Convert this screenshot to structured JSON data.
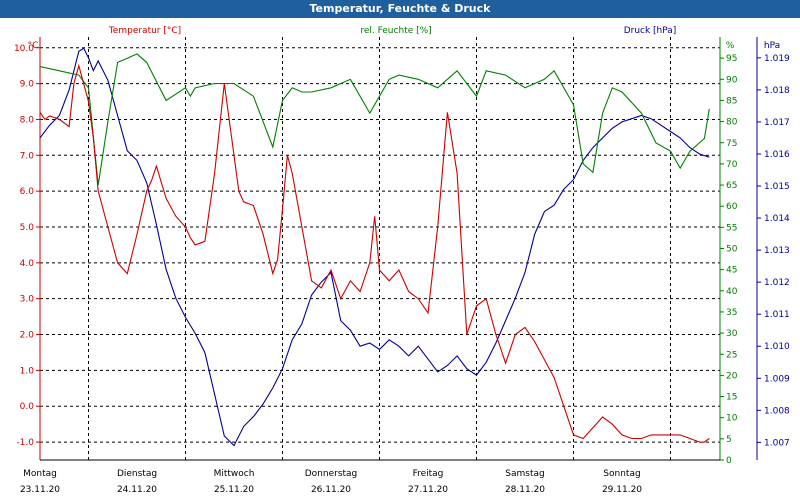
{
  "title": "Temperatur, Feuchte & Druck",
  "chart_data": {
    "type": "line",
    "title": "Temperatur, Feuchte & Druck",
    "x_days": [
      {
        "day": "Montag",
        "date": "23.11.20"
      },
      {
        "day": "Dienstag",
        "date": "24.11.20"
      },
      {
        "day": "Mittwoch",
        "date": "25.11.20"
      },
      {
        "day": "Donnerstag",
        "date": "26.11.20"
      },
      {
        "day": "Freitag",
        "date": "27.11.20"
      },
      {
        "day": "Samstag",
        "date": "28.11.20"
      },
      {
        "day": "Sonntag",
        "date": "29.11.20"
      }
    ],
    "grid": true,
    "axes": {
      "temperature": {
        "label": "Temperatur [°C]",
        "unit": "°C",
        "color": "#cc0000",
        "min": -1.5,
        "max": 10.3,
        "ticks": [
          "10.0",
          "9.0",
          "8.0",
          "7.0",
          "6.0",
          "5.0",
          "4.0",
          "3.0",
          "2.0",
          "1.0",
          "0.0",
          "-1.0"
        ]
      },
      "humidity": {
        "label": "rel. Feuchte [%]",
        "unit": "%",
        "color": "#008000",
        "min": 0,
        "max": 100,
        "ticks": [
          "95",
          "90",
          "85",
          "80",
          "75",
          "70",
          "65",
          "60",
          "55",
          "50",
          "45",
          "40",
          "35",
          "30",
          "25",
          "20",
          "15",
          "10",
          "5",
          "0"
        ]
      },
      "pressure": {
        "label": "Druck [hPa]",
        "unit": "hPa",
        "color": "#000099",
        "min": 1006.45,
        "max": 1019.65,
        "ticks": [
          "1.019",
          "1.018",
          "1.017",
          "1.016",
          "1.015",
          "1.014",
          "1.013",
          "1.012",
          "1.011",
          "1.010",
          "1.009",
          "1.008",
          "1.007"
        ]
      }
    },
    "series": [
      {
        "name": "Temperatur [°C]",
        "axis": "temperature",
        "color": "#cc0000",
        "x": [
          0,
          0.05,
          0.1,
          0.2,
          0.3,
          0.35,
          0.4,
          0.5,
          0.55,
          0.6,
          0.7,
          0.8,
          0.9,
          1.0,
          1.1,
          1.15,
          1.2,
          1.3,
          1.4,
          1.5,
          1.55,
          1.6,
          1.7,
          1.8,
          1.9,
          2.0,
          2.05,
          2.1,
          2.2,
          2.3,
          2.4,
          2.45,
          2.5,
          2.55,
          2.6,
          2.7,
          2.8,
          2.9,
          3.0,
          3.1,
          3.2,
          3.3,
          3.4,
          3.45,
          3.5,
          3.6,
          3.7,
          3.8,
          3.9,
          4.0,
          4.1,
          4.2,
          4.3,
          4.4,
          4.5,
          4.6,
          4.7,
          4.8,
          4.9,
          5.0,
          5.1,
          5.2,
          5.3,
          5.4,
          5.5,
          5.6,
          5.7,
          5.8,
          5.9,
          6.0,
          6.1,
          6.2,
          6.3,
          6.4,
          6.5,
          6.6,
          6.7,
          6.8,
          6.85,
          6.9
        ],
        "values": [
          8.2,
          8.0,
          8.1,
          8.0,
          7.8,
          9.0,
          9.5,
          8.5,
          7.5,
          6.0,
          5.0,
          4.0,
          3.7,
          4.8,
          6.0,
          6.3,
          6.7,
          5.8,
          5.3,
          5.0,
          4.7,
          4.5,
          4.6,
          6.5,
          9.0,
          7.0,
          6.0,
          5.7,
          5.6,
          4.8,
          3.7,
          4.1,
          5.5,
          7.0,
          6.5,
          5.0,
          3.5,
          3.3,
          3.8,
          3.0,
          3.5,
          3.2,
          4.0,
          5.3,
          3.8,
          3.5,
          3.8,
          3.2,
          3.0,
          2.6,
          5.0,
          8.2,
          6.5,
          2.0,
          2.8,
          3.0,
          2.0,
          1.2,
          2.0,
          2.2,
          1.8,
          1.3,
          0.8,
          0.0,
          -0.8,
          -0.9,
          -0.6,
          -0.3,
          -0.5,
          -0.8,
          -0.9,
          -0.9,
          -0.8,
          -0.8,
          -0.8,
          -0.8,
          -0.9,
          -1.0,
          -1.0,
          -0.9
        ]
      },
      {
        "name": "rel. Feuchte [%]",
        "axis": "humidity",
        "color": "#008000",
        "x": [
          0,
          0.2,
          0.4,
          0.5,
          0.6,
          0.7,
          0.8,
          0.9,
          1.0,
          1.1,
          1.3,
          1.5,
          1.55,
          1.6,
          1.8,
          2.0,
          2.2,
          2.3,
          2.4,
          2.5,
          2.6,
          2.7,
          2.8,
          3.0,
          3.2,
          3.4,
          3.6,
          3.7,
          3.9,
          4.0,
          4.1,
          4.3,
          4.5,
          4.6,
          4.8,
          5.0,
          5.2,
          5.3,
          5.5,
          5.6,
          5.7,
          5.8,
          5.9,
          6.0,
          6.2,
          6.35,
          6.5,
          6.6,
          6.7,
          6.85,
          6.9
        ],
        "values": [
          93,
          92,
          91,
          88,
          65,
          80,
          94,
          95,
          96,
          94,
          85,
          88,
          86,
          88,
          89,
          89,
          86,
          80,
          74,
          85,
          88,
          87,
          87,
          88,
          90,
          82,
          90,
          91,
          90,
          89,
          88,
          92,
          86,
          92,
          91,
          88,
          90,
          92,
          84,
          70,
          68,
          82,
          88,
          87,
          82,
          75,
          73,
          69,
          73,
          76,
          83
        ]
      },
      {
        "name": "Druck [hPa]",
        "axis": "pressure",
        "color": "#000099",
        "x": [
          0,
          0.1,
          0.2,
          0.3,
          0.4,
          0.45,
          0.5,
          0.55,
          0.6,
          0.7,
          0.8,
          0.9,
          1.0,
          1.1,
          1.2,
          1.3,
          1.4,
          1.5,
          1.6,
          1.7,
          1.8,
          1.9,
          2.0,
          2.1,
          2.2,
          2.3,
          2.4,
          2.5,
          2.6,
          2.7,
          2.8,
          2.9,
          3.0,
          3.1,
          3.2,
          3.3,
          3.4,
          3.5,
          3.6,
          3.7,
          3.8,
          3.9,
          4.0,
          4.1,
          4.2,
          4.3,
          4.4,
          4.5,
          4.6,
          4.7,
          4.8,
          4.9,
          5.0,
          5.1,
          5.2,
          5.3,
          5.4,
          5.5,
          5.6,
          5.7,
          5.8,
          5.9,
          6.0,
          6.1,
          6.2,
          6.3,
          6.4,
          6.5,
          6.6,
          6.7,
          6.8,
          6.9
        ],
        "values": [
          1016.5,
          1016.9,
          1017.2,
          1018.0,
          1019.2,
          1019.3,
          1019.0,
          1018.6,
          1018.9,
          1018.3,
          1017.2,
          1016.1,
          1015.8,
          1015.1,
          1013.8,
          1012.4,
          1011.5,
          1010.9,
          1010.4,
          1009.8,
          1008.5,
          1007.2,
          1006.9,
          1007.5,
          1007.8,
          1008.2,
          1008.7,
          1009.3,
          1010.2,
          1010.7,
          1011.6,
          1012.0,
          1012.3,
          1010.8,
          1010.5,
          1010.0,
          1010.1,
          1009.9,
          1010.2,
          1010.0,
          1009.7,
          1010.0,
          1009.6,
          1009.2,
          1009.4,
          1009.7,
          1009.3,
          1009.1,
          1009.5,
          1010.1,
          1010.8,
          1011.5,
          1012.3,
          1013.5,
          1014.2,
          1014.4,
          1014.9,
          1015.2,
          1015.8,
          1016.2,
          1016.5,
          1016.8,
          1017.0,
          1017.1,
          1017.2,
          1017.1,
          1016.9,
          1016.7,
          1016.5,
          1016.2,
          1016.0,
          1015.9
        ]
      }
    ]
  }
}
